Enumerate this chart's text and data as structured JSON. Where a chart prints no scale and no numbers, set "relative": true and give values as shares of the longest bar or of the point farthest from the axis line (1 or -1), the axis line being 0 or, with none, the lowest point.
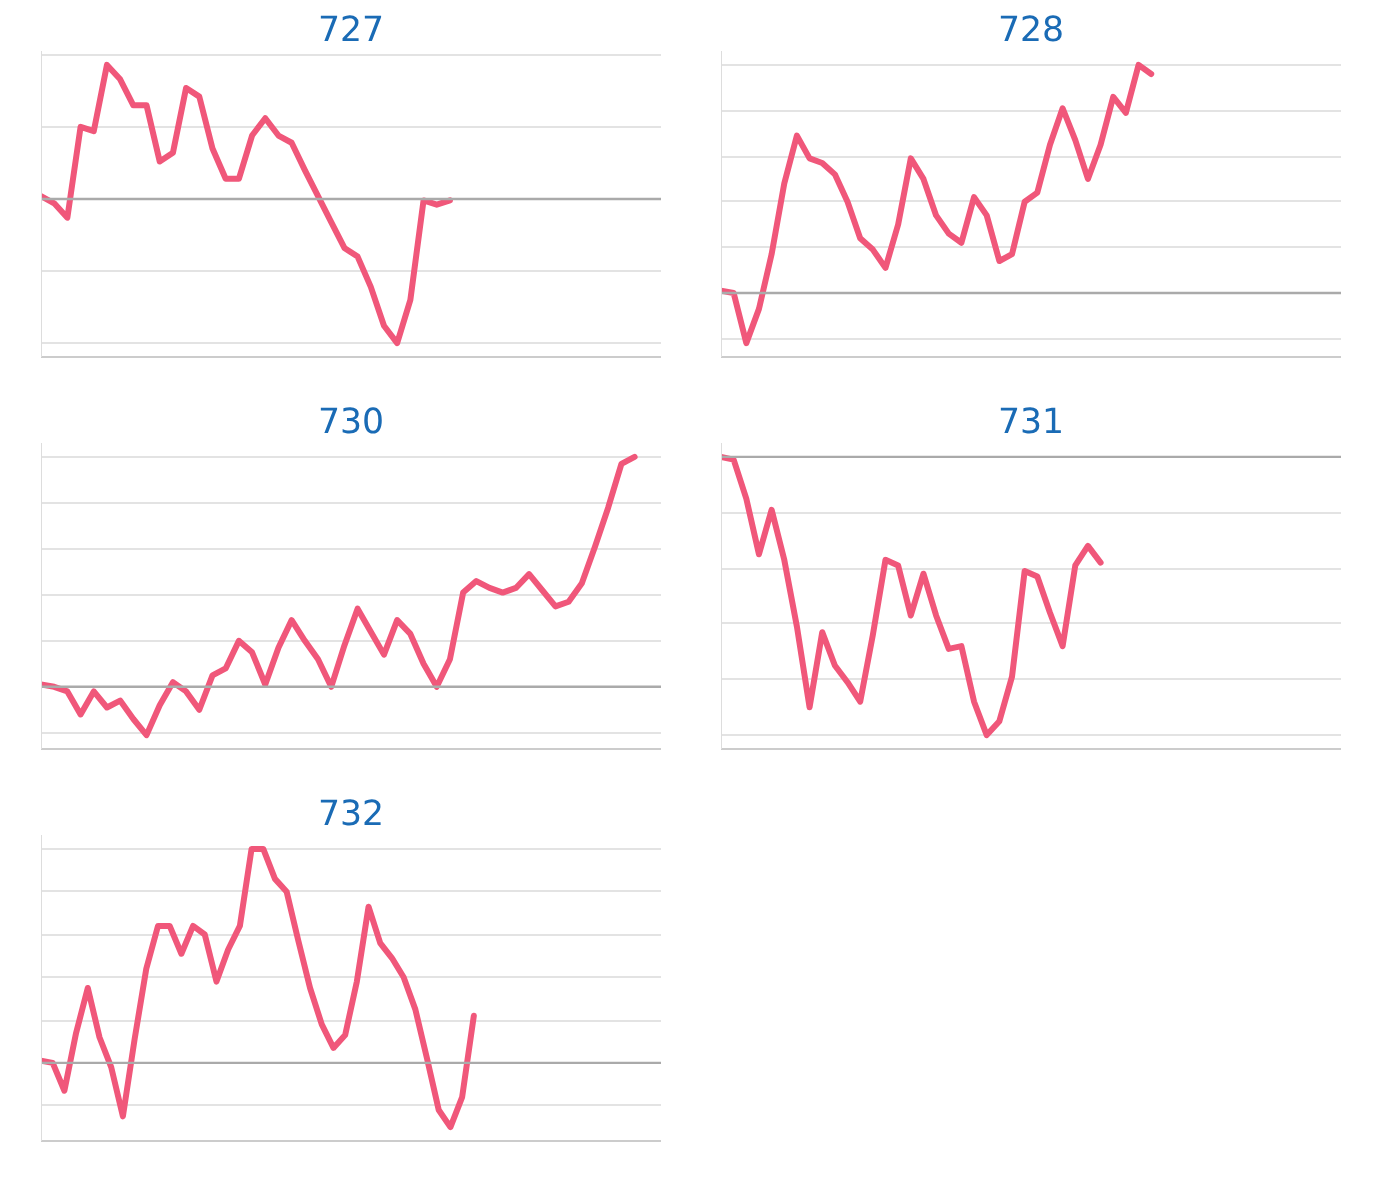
{
  "chart_data": [
    {
      "type": "line",
      "title": "727",
      "relative": true,
      "grid": "y",
      "categories": [
        null,
        null,
        null,
        null,
        null,
        null,
        null,
        null,
        null,
        null,
        null,
        null,
        null,
        null,
        null,
        null,
        null,
        null,
        null,
        null,
        null,
        null,
        null,
        null,
        null,
        null,
        null,
        null,
        null,
        null,
        null,
        null,
        null,
        null,
        null,
        null,
        null,
        null,
        null,
        null,
        null,
        null,
        null,
        null,
        null,
        null,
        null,
        null
      ],
      "series": [
        {
          "color": "#f0577a",
          "values": [
            0.02,
            -0.03,
            -0.13,
            0.5,
            0.47,
            0.93,
            0.83,
            0.65,
            0.65,
            0.26,
            0.32,
            0.77,
            0.71,
            0.35,
            0.14,
            0.14,
            0.44,
            0.56,
            0.44,
            0.39,
            0.2,
            0.02,
            -0.16,
            -0.34,
            -0.4,
            -0.61,
            -0.88,
            -1,
            -0.7,
            -0.01,
            -0.04,
            -0.01,
            null,
            null,
            null,
            null,
            null,
            null,
            null,
            null,
            null,
            null,
            null,
            null,
            null,
            null,
            null,
            null
          ]
        }
      ]
    },
    {
      "type": "line",
      "title": "728",
      "relative": true,
      "grid": "y",
      "categories": [
        null,
        null,
        null,
        null,
        null,
        null,
        null,
        null,
        null,
        null,
        null,
        null,
        null,
        null,
        null,
        null,
        null,
        null,
        null,
        null,
        null,
        null,
        null,
        null,
        null,
        null,
        null,
        null,
        null,
        null,
        null,
        null,
        null,
        null,
        null,
        null,
        null,
        null,
        null,
        null,
        null,
        null,
        null,
        null,
        null,
        null,
        null,
        null,
        null,
        null
      ],
      "series": [
        {
          "color": "#f0577a",
          "values": [
            0.01,
            0,
            -0.22,
            -0.07,
            0.17,
            0.48,
            0.69,
            0.59,
            0.57,
            0.52,
            0.4,
            0.24,
            0.19,
            0.11,
            0.3,
            0.59,
            0.5,
            0.34,
            0.26,
            0.22,
            0.42,
            0.34,
            0.14,
            0.17,
            0.4,
            0.44,
            0.65,
            0.81,
            0.67,
            0.5,
            0.65,
            0.86,
            0.79,
            1,
            0.96,
            null,
            null,
            null,
            null,
            null,
            null,
            null,
            null,
            null,
            null,
            null,
            null,
            null,
            null,
            null
          ]
        }
      ]
    },
    {
      "type": "line",
      "title": "730",
      "relative": true,
      "grid": "y",
      "categories": [
        null,
        null,
        null,
        null,
        null,
        null,
        null,
        null,
        null,
        null,
        null,
        null,
        null,
        null,
        null,
        null,
        null,
        null,
        null,
        null,
        null,
        null,
        null,
        null,
        null,
        null,
        null,
        null,
        null,
        null,
        null,
        null,
        null,
        null,
        null,
        null,
        null,
        null,
        null,
        null,
        null,
        null,
        null,
        null,
        null,
        null,
        null,
        null
      ],
      "series": [
        {
          "color": "#f0577a",
          "values": [
            0.01,
            0,
            -0.02,
            -0.12,
            -0.02,
            -0.09,
            -0.06,
            -0.14,
            -0.21,
            -0.08,
            0.02,
            -0.02,
            -0.1,
            0.05,
            0.08,
            0.2,
            0.15,
            0.01,
            0.17,
            0.29,
            0.2,
            0.12,
            0,
            0.18,
            0.34,
            0.24,
            0.14,
            0.29,
            0.23,
            0.1,
            0,
            0.12,
            0.41,
            0.46,
            0.43,
            0.41,
            0.43,
            0.49,
            0.42,
            0.35,
            0.37,
            0.45,
            0.61,
            0.78,
            0.97,
            1,
            null,
            null
          ]
        }
      ]
    },
    {
      "type": "line",
      "title": "731",
      "relative": true,
      "grid": "y",
      "categories": [
        null,
        null,
        null,
        null,
        null,
        null,
        null,
        null,
        null,
        null,
        null,
        null,
        null,
        null,
        null,
        null,
        null,
        null,
        null,
        null,
        null,
        null,
        null,
        null,
        null,
        null,
        null,
        null,
        null,
        null,
        null,
        null,
        null,
        null,
        null,
        null,
        null,
        null,
        null,
        null,
        null,
        null,
        null,
        null,
        null,
        null,
        null,
        null,
        null,
        null
      ],
      "series": [
        {
          "color": "#f0577a",
          "values": [
            0,
            -0.01,
            -0.15,
            -0.35,
            -0.19,
            -0.37,
            -0.61,
            -0.9,
            -0.63,
            -0.75,
            -0.81,
            -0.88,
            -0.64,
            -0.37,
            -0.39,
            -0.57,
            -0.42,
            -0.57,
            -0.69,
            -0.68,
            -0.88,
            -1,
            -0.95,
            -0.79,
            -0.41,
            -0.43,
            -0.56,
            -0.68,
            -0.39,
            -0.32,
            -0.38,
            null,
            null,
            null,
            null,
            null,
            null,
            null,
            null,
            null,
            null,
            null,
            null,
            null,
            null,
            null,
            null,
            null,
            null,
            null
          ]
        }
      ]
    },
    {
      "type": "line",
      "title": "732",
      "relative": true,
      "grid": "y",
      "categories": [
        null,
        null,
        null,
        null,
        null,
        null,
        null,
        null,
        null,
        null,
        null,
        null,
        null,
        null,
        null,
        null,
        null,
        null,
        null,
        null,
        null,
        null,
        null,
        null,
        null,
        null,
        null,
        null,
        null,
        null,
        null,
        null,
        null,
        null,
        null,
        null,
        null,
        null,
        null,
        null,
        null,
        null,
        null,
        null,
        null,
        null,
        null,
        null,
        null,
        null,
        null,
        null,
        null,
        null
      ],
      "series": [
        {
          "color": "#f0577a",
          "values": [
            0.01,
            0,
            -0.13,
            0.14,
            0.35,
            0.12,
            -0.02,
            -0.25,
            0.11,
            0.44,
            0.64,
            0.64,
            0.51,
            0.64,
            0.6,
            0.38,
            0.53,
            0.64,
            1,
            1,
            0.86,
            0.8,
            0.57,
            0.35,
            0.18,
            0.07,
            0.13,
            0.38,
            0.73,
            0.56,
            0.49,
            0.4,
            0.25,
            0.02,
            -0.22,
            -0.3,
            -0.16,
            0.22,
            null,
            null,
            null,
            null,
            null,
            null,
            null,
            null,
            null,
            null,
            null,
            null,
            null,
            null,
            null,
            null
          ]
        }
      ]
    }
  ]
}
